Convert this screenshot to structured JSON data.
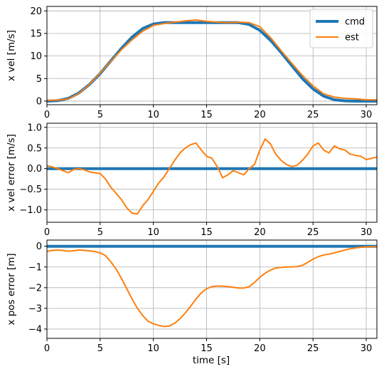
{
  "colors": {
    "cmd": "#1f77b4",
    "est": "#ff7f0e",
    "grid": "#b0b0b0"
  },
  "legend": [
    {
      "key": "cmd",
      "label": "cmd"
    },
    {
      "key": "est",
      "label": "est"
    }
  ],
  "shared_x": {
    "label": "time [s]",
    "ticks": [
      0,
      5,
      10,
      15,
      20,
      25,
      30
    ],
    "tick_labels": [
      "0",
      "5",
      "10",
      "15",
      "20",
      "25",
      "30"
    ],
    "range": [
      0,
      31
    ]
  },
  "chart_data": [
    {
      "type": "line",
      "ylabel": "x vel [m/s]",
      "xlim": [
        0,
        31
      ],
      "ylim": [
        -0.8,
        21
      ],
      "yticks": [
        0,
        5,
        10,
        15,
        20
      ],
      "ytick_labels": [
        "0",
        "5",
        "10",
        "15",
        "20"
      ],
      "grid": true,
      "legend": "top-right",
      "series": [
        {
          "name": "cmd",
          "key": "cmd",
          "x": [
            0,
            1,
            2,
            3,
            4,
            5,
            6,
            7,
            8,
            9,
            10,
            11,
            12,
            13,
            14,
            15,
            16,
            17,
            18,
            19,
            20,
            21,
            22,
            23,
            24,
            25,
            26,
            27,
            28,
            29,
            30,
            31
          ],
          "y": [
            0.0,
            0.1,
            0.6,
            1.8,
            3.7,
            6.1,
            8.9,
            11.7,
            14.2,
            16.1,
            17.1,
            17.4,
            17.4,
            17.4,
            17.4,
            17.4,
            17.4,
            17.4,
            17.4,
            17.0,
            15.7,
            13.5,
            10.8,
            7.9,
            5.0,
            2.7,
            1.1,
            0.3,
            0.05,
            0.0,
            0.0,
            0.0
          ]
        },
        {
          "name": "est",
          "key": "est",
          "x": [
            0,
            1,
            2,
            3,
            4,
            5,
            6,
            7,
            8,
            9,
            10,
            11,
            12,
            13,
            14,
            15,
            16,
            17,
            18,
            19,
            20,
            21,
            22,
            23,
            24,
            25,
            26,
            27,
            28,
            29,
            30,
            31
          ],
          "y": [
            0.2,
            0.2,
            0.5,
            1.7,
            3.7,
            6.2,
            8.8,
            11.4,
            13.6,
            15.5,
            16.8,
            17.2,
            17.5,
            17.8,
            18.0,
            17.7,
            17.5,
            17.4,
            17.5,
            17.4,
            16.5,
            14.1,
            11.2,
            8.4,
            5.7,
            3.4,
            1.6,
            0.9,
            0.6,
            0.5,
            0.3,
            0.3
          ]
        }
      ]
    },
    {
      "type": "line",
      "ylabel": "x vel error [m/s]",
      "xlim": [
        0,
        31
      ],
      "ylim": [
        -1.3,
        1.1
      ],
      "yticks": [
        -1.0,
        -0.5,
        0.0,
        0.5,
        1.0
      ],
      "ytick_labels": [
        "−1.0",
        "−0.5",
        "0.0",
        "0.5",
        "1.0"
      ],
      "grid": true,
      "series": [
        {
          "name": "cmd",
          "key": "cmd",
          "x": [
            0,
            31
          ],
          "y": [
            0.0,
            0.0
          ]
        },
        {
          "name": "est",
          "key": "est",
          "x": [
            0,
            0.5,
            1,
            1.5,
            2,
            2.5,
            3,
            3.5,
            4,
            4.5,
            5,
            5.5,
            6,
            6.5,
            7,
            7.5,
            8,
            8.5,
            9,
            9.5,
            10,
            10.5,
            11,
            11.5,
            12,
            12.5,
            13,
            13.5,
            14,
            14.5,
            15,
            15.5,
            16,
            16.5,
            17,
            17.5,
            18,
            18.5,
            19,
            19.5,
            20,
            20.5,
            21,
            21.5,
            22,
            22.5,
            23,
            23.5,
            24,
            24.5,
            25,
            25.5,
            26,
            26.5,
            27,
            27.5,
            28,
            28.5,
            29,
            29.5,
            30,
            30.5,
            31
          ],
          "y": [
            0.07,
            0.04,
            0.0,
            -0.05,
            -0.1,
            -0.02,
            0.0,
            -0.03,
            -0.08,
            -0.1,
            -0.12,
            -0.25,
            -0.45,
            -0.6,
            -0.75,
            -0.95,
            -1.08,
            -1.1,
            -0.9,
            -0.75,
            -0.55,
            -0.35,
            -0.2,
            0.0,
            0.2,
            0.38,
            0.5,
            0.58,
            0.62,
            0.45,
            0.3,
            0.25,
            0.05,
            -0.22,
            -0.15,
            -0.05,
            -0.1,
            -0.15,
            0.0,
            0.1,
            0.45,
            0.72,
            0.6,
            0.35,
            0.2,
            0.1,
            0.05,
            0.08,
            0.2,
            0.35,
            0.55,
            0.62,
            0.45,
            0.38,
            0.55,
            0.48,
            0.45,
            0.35,
            0.32,
            0.3,
            0.22,
            0.25,
            0.28
          ]
        }
      ]
    },
    {
      "type": "line",
      "ylabel": "x pos error [m]",
      "xlabel": "time [s]",
      "xlim": [
        0,
        31
      ],
      "ylim": [
        -4.45,
        0.3
      ],
      "yticks": [
        0,
        -1,
        -2,
        -3,
        -4
      ],
      "ytick_labels": [
        "0",
        "−1",
        "−2",
        "−3",
        "−4"
      ],
      "grid": true,
      "series": [
        {
          "name": "cmd",
          "key": "cmd",
          "x": [
            0,
            31
          ],
          "y": [
            0.0,
            0.0
          ]
        },
        {
          "name": "est",
          "key": "est",
          "x": [
            0,
            0.5,
            1,
            1.5,
            2,
            2.5,
            3,
            3.5,
            4,
            4.5,
            5,
            5.5,
            6,
            6.5,
            7,
            7.5,
            8,
            8.5,
            9,
            9.5,
            10,
            10.5,
            11,
            11.5,
            12,
            12.5,
            13,
            13.5,
            14,
            14.5,
            15,
            15.5,
            16,
            16.5,
            17,
            17.5,
            18,
            18.5,
            19,
            19.5,
            20,
            20.5,
            21,
            21.5,
            22,
            22.5,
            23,
            23.5,
            24,
            24.5,
            25,
            25.5,
            26,
            26.5,
            27,
            27.5,
            28,
            28.5,
            29,
            29.5,
            30,
            30.5,
            31
          ],
          "y": [
            -0.25,
            -0.2,
            -0.18,
            -0.2,
            -0.24,
            -0.22,
            -0.18,
            -0.2,
            -0.22,
            -0.26,
            -0.32,
            -0.45,
            -0.75,
            -1.1,
            -1.55,
            -2.05,
            -2.55,
            -3.0,
            -3.35,
            -3.62,
            -3.75,
            -3.82,
            -3.88,
            -3.85,
            -3.72,
            -3.5,
            -3.22,
            -2.9,
            -2.55,
            -2.25,
            -2.05,
            -1.95,
            -1.92,
            -1.93,
            -1.95,
            -1.98,
            -2.02,
            -2.02,
            -1.95,
            -1.75,
            -1.5,
            -1.3,
            -1.15,
            -1.05,
            -1.02,
            -1.0,
            -1.0,
            -0.98,
            -0.92,
            -0.78,
            -0.62,
            -0.5,
            -0.42,
            -0.38,
            -0.32,
            -0.25,
            -0.18,
            -0.12,
            -0.08,
            -0.05,
            -0.03,
            -0.02,
            -0.02
          ]
        }
      ]
    }
  ]
}
